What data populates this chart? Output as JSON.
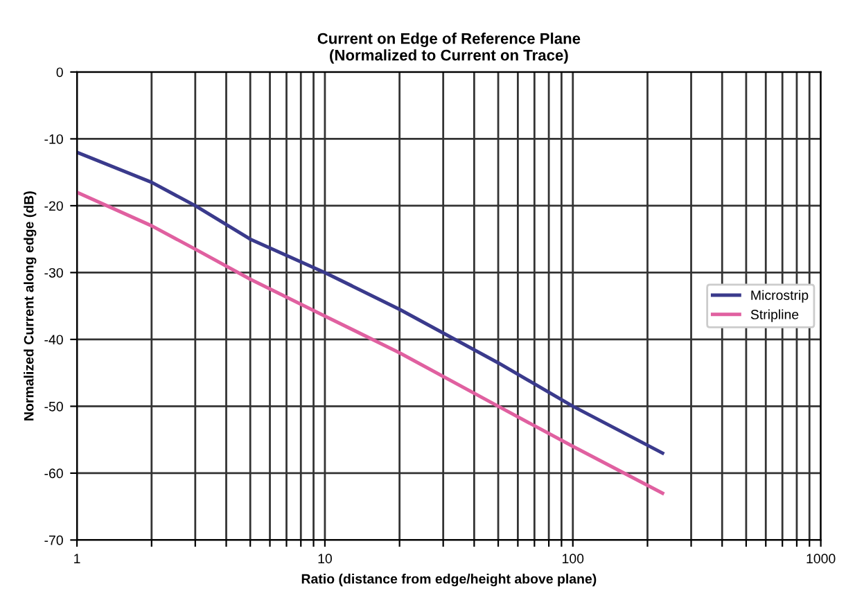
{
  "chart_data": {
    "type": "line",
    "title": "Current on Edge of Reference Plane\n(Normalized to Current on Trace)",
    "xlabel": "Ratio (distance from edge/height above plane)",
    "ylabel": "Normalized Current along edge (dB)",
    "log": "x",
    "xlim": [
      1,
      1000
    ],
    "ylim": [
      -70,
      0
    ],
    "xticks": [
      1,
      {
        "value": 2,
        "label": null
      },
      {
        "value": 3,
        "label": null
      },
      {
        "value": 4,
        "label": null
      },
      {
        "value": 5,
        "label": null
      },
      {
        "value": 6,
        "label": null
      },
      {
        "value": 7,
        "label": null
      },
      {
        "value": 8,
        "label": null
      },
      {
        "value": 9,
        "label": null
      },
      10,
      {
        "value": 20,
        "label": null
      },
      {
        "value": 30,
        "label": null
      },
      {
        "value": 40,
        "label": null
      },
      {
        "value": 50,
        "label": null
      },
      {
        "value": 60,
        "label": null
      },
      {
        "value": 70,
        "label": null
      },
      {
        "value": 80,
        "label": null
      },
      {
        "value": 90,
        "label": null
      },
      100,
      {
        "value": 200,
        "label": null
      },
      {
        "value": 300,
        "label": null
      },
      {
        "value": 400,
        "label": null
      },
      {
        "value": 500,
        "label": null
      },
      {
        "value": 600,
        "label": null
      },
      {
        "value": 700,
        "label": null
      },
      {
        "value": 800,
        "label": null
      },
      {
        "value": 900,
        "label": null
      },
      1000
    ],
    "yticks": [
      -70,
      -60,
      -50,
      -40,
      -30,
      -20,
      -10,
      0
    ],
    "grid": true,
    "legend": "center right",
    "marker": "none",
    "line_style": "solid",
    "series": [
      {
        "name": "Microstrip",
        "color": "#3a3a8c",
        "x": [
          1,
          2,
          3,
          5,
          10,
          20,
          50,
          100,
          230
        ],
        "values": [
          -12,
          -16.5,
          -20,
          -25,
          -30,
          -35.5,
          -43.5,
          -50,
          -57
        ]
      },
      {
        "name": "Stripline",
        "color": "#e060a0",
        "x": [
          1,
          2,
          3,
          5,
          10,
          20,
          50,
          100,
          230
        ],
        "values": [
          -18,
          -23,
          -26.5,
          -31,
          -36.5,
          -42,
          -50,
          -56,
          -63
        ]
      }
    ]
  }
}
